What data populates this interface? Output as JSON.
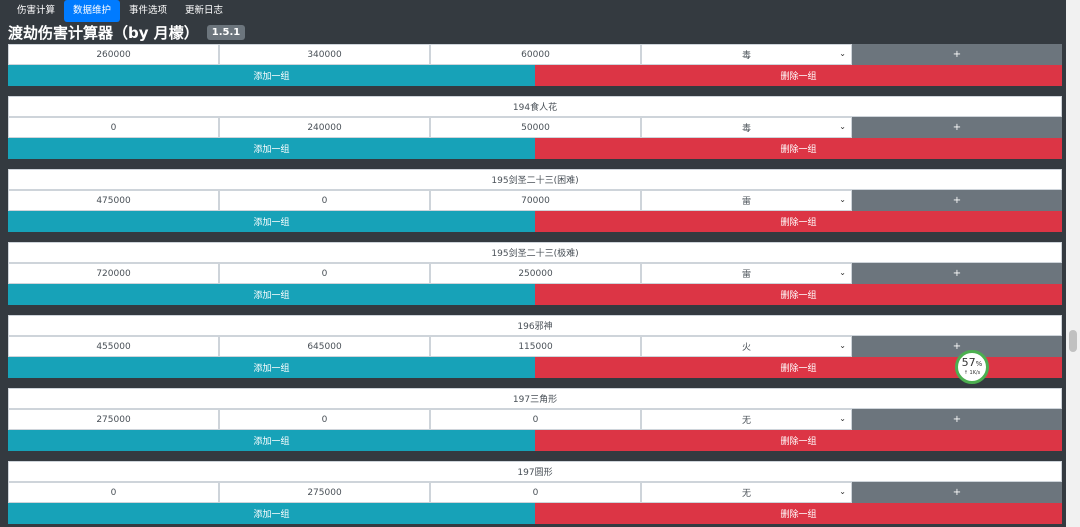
{
  "nav": {
    "items": [
      "伤害计算",
      "数据维护",
      "事件选项",
      "更新日志"
    ],
    "active_index": 1
  },
  "title": "渡劫伤害计算器（by 月檬）",
  "version": "1.5.1",
  "buttons": {
    "add": "添加一组",
    "delete": "删除一组",
    "plus": "+"
  },
  "top_row": {
    "values": [
      "260000",
      "340000",
      "60000"
    ],
    "element": "毒"
  },
  "groups": [
    {
      "name": "194食人花",
      "values": [
        "0",
        "240000",
        "50000"
      ],
      "element": "毒"
    },
    {
      "name": "195剑圣二十三(困难)",
      "values": [
        "475000",
        "0",
        "70000"
      ],
      "element": "雷"
    },
    {
      "name": "195剑圣二十三(极难)",
      "values": [
        "720000",
        "0",
        "250000"
      ],
      "element": "雷"
    },
    {
      "name": "196邪神",
      "values": [
        "455000",
        "645000",
        "115000"
      ],
      "element": "火"
    },
    {
      "name": "197三角形",
      "values": [
        "275000",
        "0",
        "0"
      ],
      "element": "无"
    },
    {
      "name": "197圆形",
      "values": [
        "0",
        "275000",
        "0"
      ],
      "element": "无"
    }
  ],
  "speed_widget": {
    "percent": "57",
    "percent_unit": "%",
    "rate": "↑ 1K/s"
  }
}
